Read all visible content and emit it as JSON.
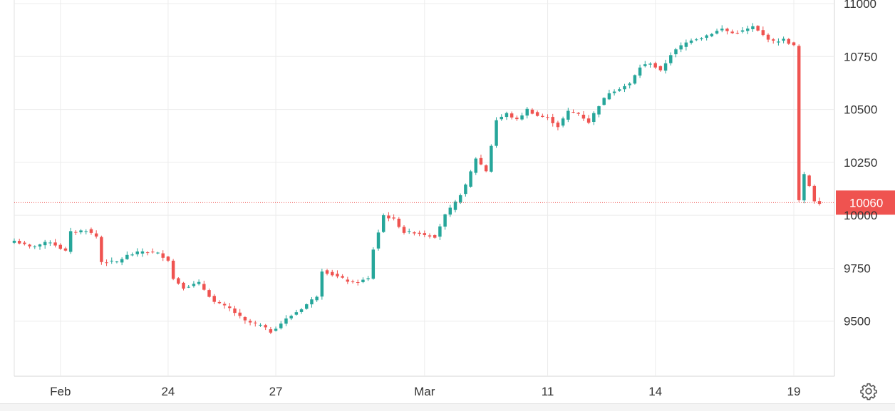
{
  "chart_data": {
    "type": "candlestick",
    "title": "",
    "xlabel": "",
    "ylabel": "",
    "ylim": [
      9240,
      11000
    ],
    "grid": true,
    "y_ticks": [
      9500,
      9750,
      10000,
      10250,
      10500,
      10750,
      11000
    ],
    "y_tick_labels": [
      "9500",
      "9750",
      "10000",
      "10250",
      "10500",
      "10750",
      "11000"
    ],
    "x_tick_labels": [
      "Feb",
      "24",
      "27",
      "Mar",
      "11",
      "14",
      "19"
    ],
    "last_price": 10060,
    "last_price_label": "10060",
    "colors": {
      "up": "#26a69a",
      "down": "#ef5350",
      "last_price": "#ef5350",
      "grid": "#ececec",
      "axis_text": "#333333"
    },
    "close_path": [
      [
        0,
        9880
      ],
      [
        3,
        9850
      ],
      [
        7,
        9875
      ],
      [
        10,
        9830
      ],
      [
        11,
        9920
      ],
      [
        14,
        9930
      ],
      [
        16,
        9900
      ],
      [
        17,
        9780
      ],
      [
        20,
        9780
      ],
      [
        22,
        9810
      ],
      [
        25,
        9830
      ],
      [
        28,
        9820
      ],
      [
        30,
        9790
      ],
      [
        31,
        9700
      ],
      [
        33,
        9660
      ],
      [
        36,
        9680
      ],
      [
        39,
        9590
      ],
      [
        42,
        9560
      ],
      [
        45,
        9500
      ],
      [
        48,
        9480
      ],
      [
        50,
        9450
      ],
      [
        53,
        9510
      ],
      [
        56,
        9560
      ],
      [
        59,
        9620
      ],
      [
        60,
        9740
      ],
      [
        62,
        9720
      ],
      [
        64,
        9700
      ],
      [
        66,
        9680
      ],
      [
        69,
        9700
      ],
      [
        70,
        9840
      ],
      [
        72,
        10000
      ],
      [
        74,
        9980
      ],
      [
        76,
        9920
      ],
      [
        78,
        9920
      ],
      [
        80,
        9910
      ],
      [
        82,
        9900
      ],
      [
        84,
        10000
      ],
      [
        86,
        10060
      ],
      [
        88,
        10140
      ],
      [
        90,
        10270
      ],
      [
        92,
        10210
      ],
      [
        94,
        10450
      ],
      [
        96,
        10480
      ],
      [
        98,
        10450
      ],
      [
        100,
        10500
      ],
      [
        102,
        10470
      ],
      [
        104,
        10460
      ],
      [
        106,
        10420
      ],
      [
        108,
        10490
      ],
      [
        110,
        10480
      ],
      [
        112,
        10440
      ],
      [
        114,
        10520
      ],
      [
        116,
        10580
      ],
      [
        118,
        10600
      ],
      [
        120,
        10620
      ],
      [
        122,
        10700
      ],
      [
        124,
        10720
      ],
      [
        126,
        10680
      ],
      [
        128,
        10760
      ],
      [
        130,
        10800
      ],
      [
        132,
        10830
      ],
      [
        134,
        10840
      ],
      [
        136,
        10860
      ],
      [
        138,
        10880
      ],
      [
        140,
        10860
      ],
      [
        142,
        10870
      ],
      [
        144,
        10890
      ],
      [
        146,
        10850
      ],
      [
        148,
        10820
      ],
      [
        150,
        10830
      ],
      [
        152,
        10800
      ],
      [
        153,
        10070
      ],
      [
        154,
        10190
      ],
      [
        155,
        10140
      ],
      [
        156,
        10070
      ],
      [
        157,
        10060
      ]
    ],
    "n_candles": 158,
    "label_index": [
      9,
      30,
      51,
      80,
      104,
      125,
      152
    ]
  }
}
